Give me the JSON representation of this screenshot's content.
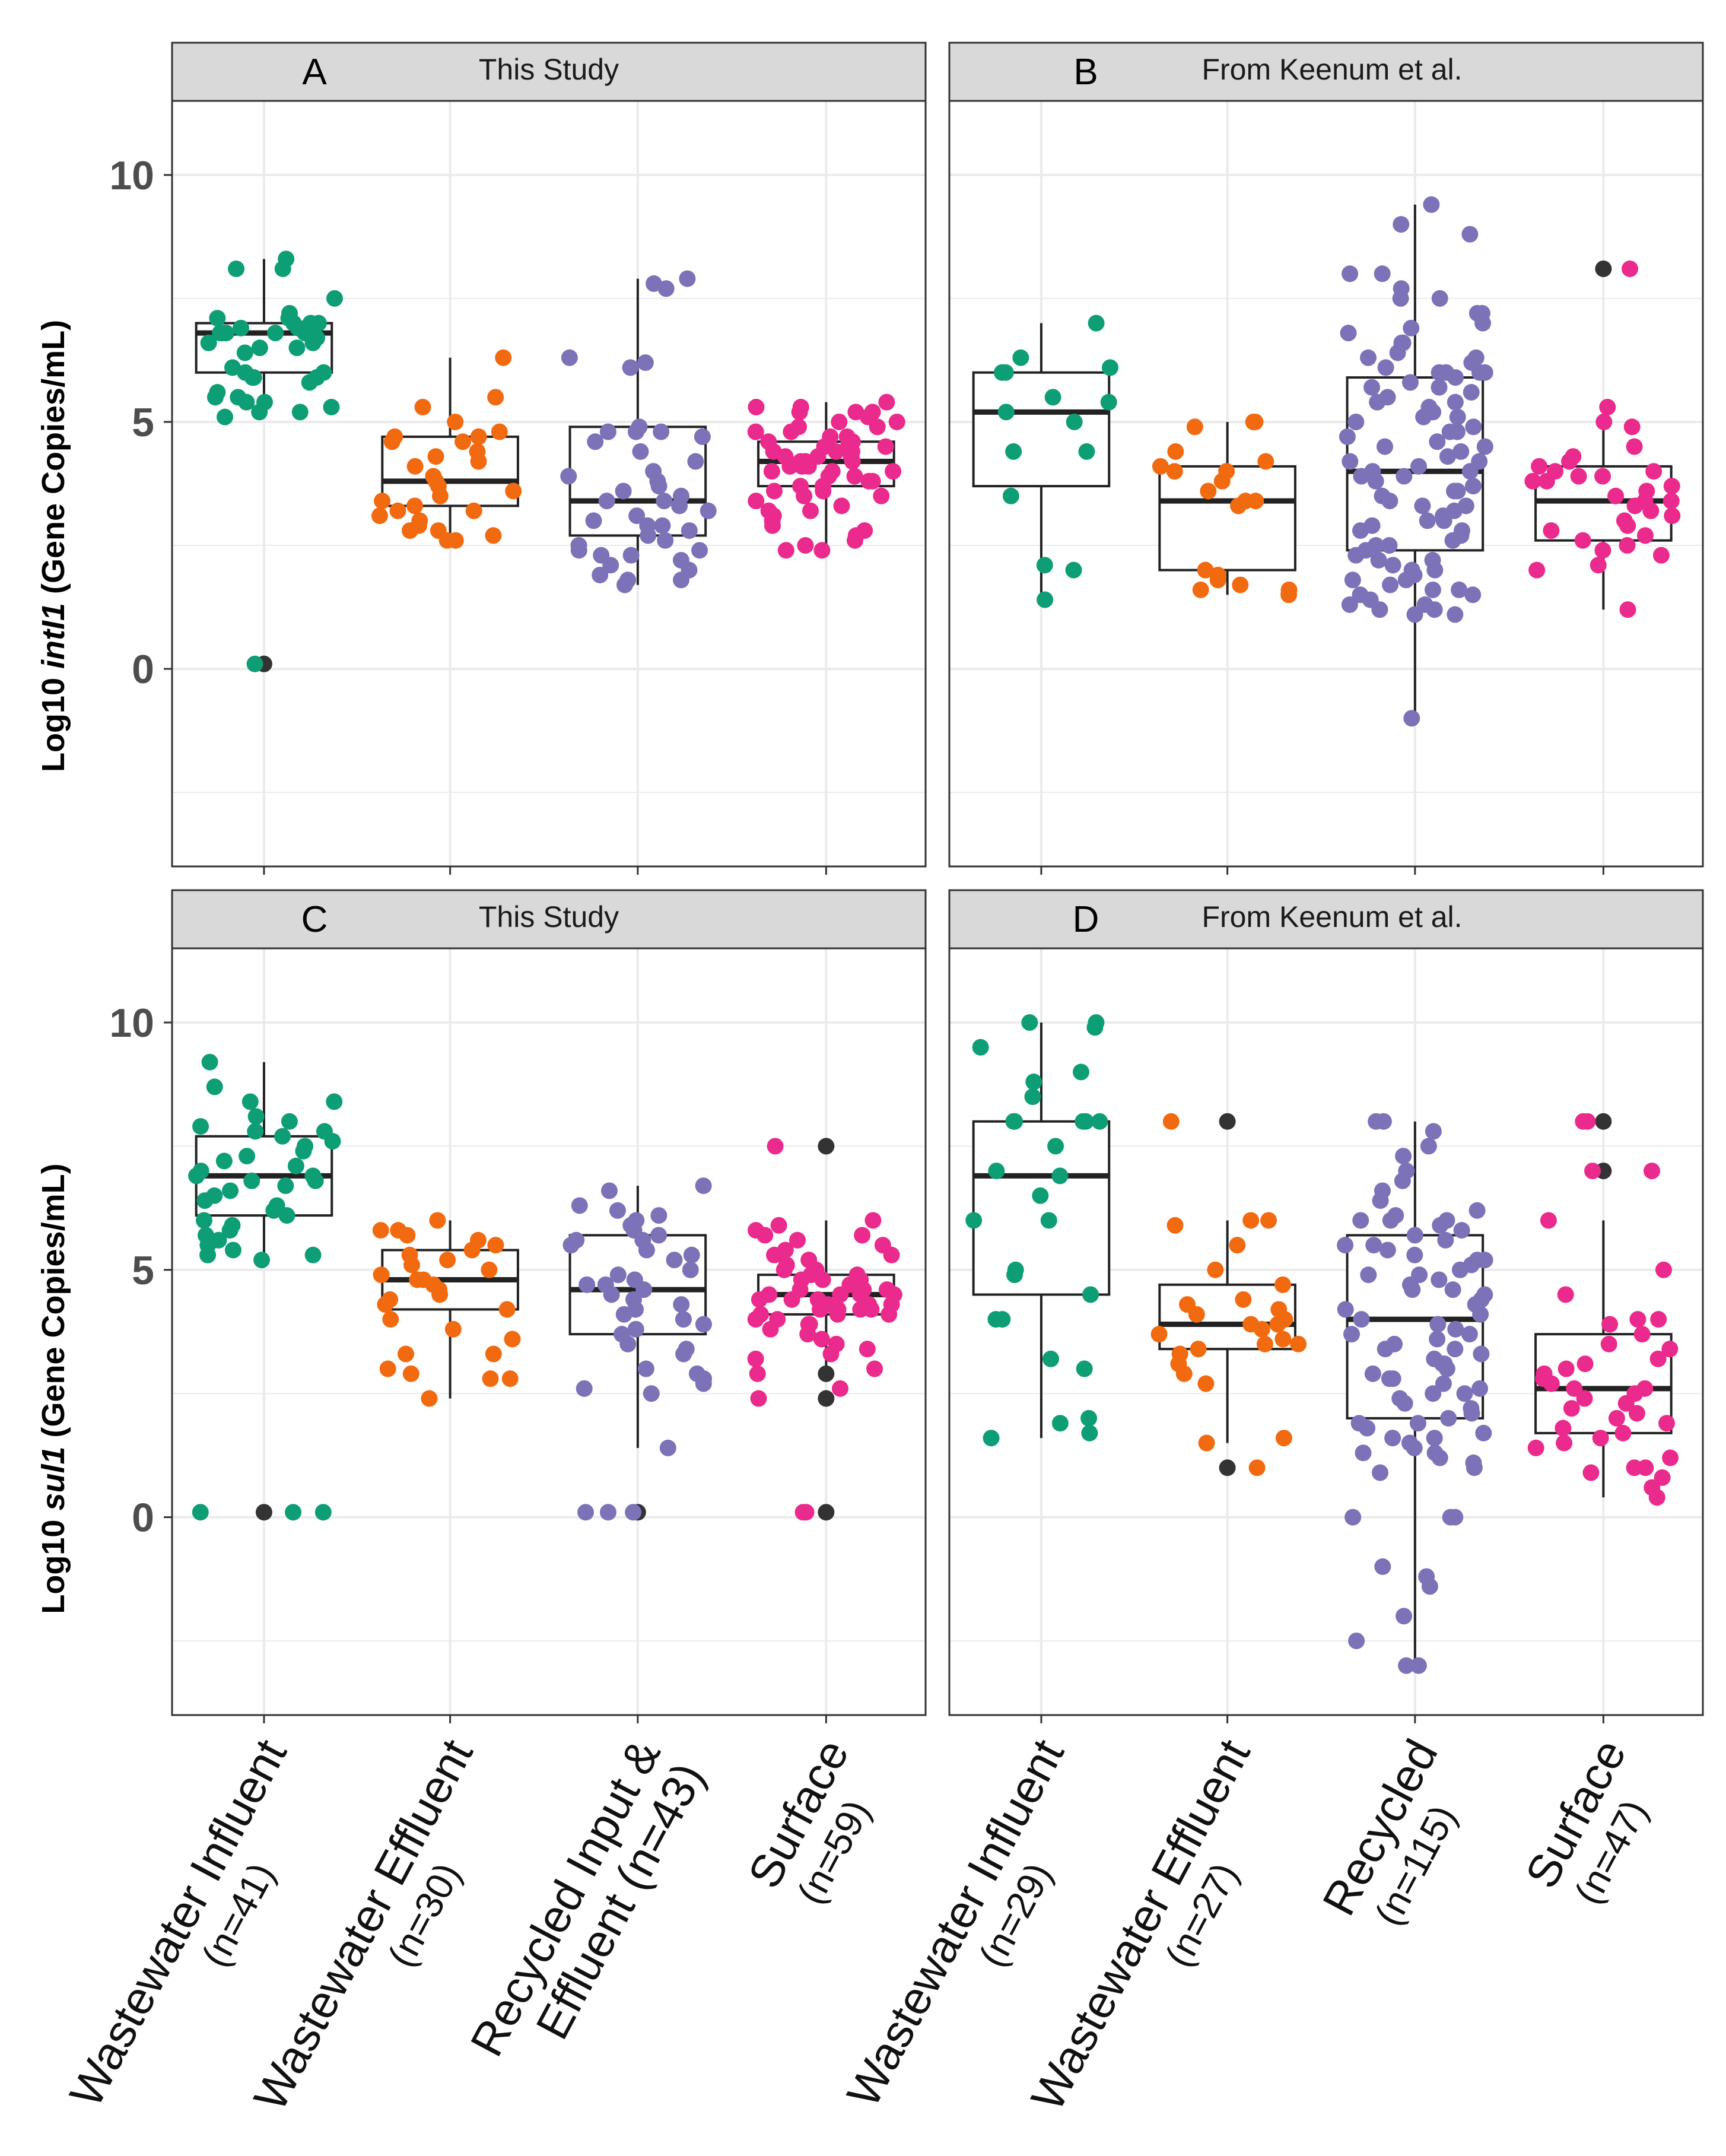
{
  "figure": {
    "y_label_top_pre": "Log10 ",
    "y_label_top_gene": "intI1",
    "y_label_top_post": " (Gene Copies/mL)",
    "y_label_bottom_pre": "Log10 ",
    "y_label_bottom_gene": "sul1",
    "y_label_bottom_post": " (Gene Copies/mL)",
    "colors": {
      "wastewater_influent": "#0e9e75",
      "wastewater_effluent": "#f26a10",
      "recycled": "#7c72b8",
      "surface": "#ea2a8c",
      "outlier": "#333333",
      "strip_fill": "#d9d9d9",
      "grid": "#ebebeb"
    }
  },
  "chart_data": [
    {
      "panel": "A",
      "title": "This Study",
      "type": "box+jitter",
      "ylabel": "Log10 intI1 (Gene Copies/mL)",
      "ylim": [
        -4,
        11.5
      ],
      "yticks": [
        0,
        5,
        10
      ],
      "categories": [
        {
          "label": [
            "Wastewater Influent"
          ],
          "n": "(n=41)",
          "color_key": "wastewater_influent",
          "box": {
            "whisker_low": 5.1,
            "q1": 6.0,
            "median": 6.8,
            "q3": 7.0,
            "whisker_high": 8.3
          },
          "outliers": [
            0.1
          ],
          "points": [
            8.3,
            8.1,
            8.1,
            7.5,
            7.2,
            7.1,
            7.1,
            7.0,
            7.0,
            7.0,
            6.9,
            6.9,
            6.9,
            6.8,
            6.8,
            6.8,
            6.8,
            6.8,
            6.7,
            6.6,
            6.6,
            6.5,
            6.5,
            6.4,
            6.1,
            6.0,
            6.0,
            5.9,
            5.9,
            5.9,
            5.8,
            5.6,
            5.5,
            5.5,
            5.4,
            5.4,
            5.3,
            5.2,
            5.2,
            5.1,
            0.1
          ]
        },
        {
          "label": [
            "Wastewater Effluent"
          ],
          "n": "(n=30)",
          "color_key": "wastewater_effluent",
          "box": {
            "whisker_low": 2.6,
            "q1": 3.3,
            "median": 3.8,
            "q3": 4.7,
            "whisker_high": 6.3
          },
          "outliers": [],
          "points": [
            6.3,
            5.5,
            5.3,
            5.0,
            4.8,
            4.7,
            4.7,
            4.6,
            4.6,
            4.4,
            4.3,
            4.2,
            4.1,
            3.9,
            3.8,
            3.7,
            3.6,
            3.5,
            3.4,
            3.3,
            3.2,
            3.2,
            3.1,
            3.0,
            2.9,
            2.8,
            2.8,
            2.7,
            2.6,
            2.6
          ]
        },
        {
          "label": [
            "Recycled Input &",
            "Effluent"
          ],
          "n": "(n=43)",
          "color_key": "recycled",
          "box": {
            "whisker_low": 1.7,
            "q1": 2.7,
            "median": 3.4,
            "q3": 4.9,
            "whisker_high": 7.9
          },
          "outliers": [],
          "points": [
            7.9,
            7.8,
            7.7,
            6.3,
            6.2,
            6.1,
            4.9,
            4.8,
            4.8,
            4.8,
            4.7,
            4.6,
            4.4,
            4.2,
            4.0,
            3.9,
            3.8,
            3.7,
            3.6,
            3.5,
            3.4,
            3.4,
            3.3,
            3.2,
            3.1,
            3.0,
            2.9,
            2.9,
            2.8,
            2.7,
            2.6,
            2.5,
            2.4,
            2.4,
            2.3,
            2.3,
            2.2,
            2.1,
            2.0,
            1.9,
            1.8,
            1.7,
            1.8
          ]
        },
        {
          "label": [
            "Surface"
          ],
          "n": "(n=59)",
          "color_key": "surface",
          "box": {
            "whisker_low": 2.4,
            "q1": 3.7,
            "median": 4.2,
            "q3": 4.6,
            "whisker_high": 5.4
          },
          "outliers": [],
          "points": [
            5.3,
            5.3,
            5.2,
            5.2,
            5.1,
            5.0,
            5.0,
            4.9,
            4.9,
            4.8,
            4.8,
            4.7,
            4.7,
            4.6,
            4.6,
            4.5,
            4.5,
            4.5,
            4.4,
            4.4,
            4.4,
            4.3,
            4.3,
            4.3,
            4.2,
            4.2,
            4.2,
            4.1,
            4.1,
            4.1,
            4.0,
            4.0,
            4.0,
            3.9,
            3.9,
            3.8,
            3.8,
            3.7,
            3.7,
            3.6,
            3.6,
            3.5,
            3.5,
            3.4,
            3.3,
            3.2,
            3.2,
            3.1,
            3.0,
            2.9,
            2.8,
            2.7,
            2.6,
            2.5,
            2.4,
            2.4,
            5.4,
            5.2,
            4.6
          ]
        }
      ]
    },
    {
      "panel": "B",
      "title": "From Keenum et al.",
      "type": "box+jitter",
      "ylabel": "Log10 intI1 (Gene Copies/mL)",
      "ylim": [
        -4,
        11.5
      ],
      "yticks": [
        0,
        5,
        10
      ],
      "categories": [
        {
          "label": [
            "Wastewater Influent"
          ],
          "n": "(n=29)",
          "color_key": "wastewater_influent",
          "box": {
            "whisker_low": 1.5,
            "q1": 3.7,
            "median": 5.2,
            "q3": 6.0,
            "whisker_high": 7.0
          },
          "outliers": [],
          "points": [
            7.0,
            6.3,
            6.1,
            6.0,
            6.0,
            5.5,
            5.4,
            5.2,
            5.0,
            4.4,
            4.4,
            3.5,
            2.1,
            2.0,
            1.4
          ]
        },
        {
          "label": [
            "Wastewater Effluent"
          ],
          "n": "(n=27)",
          "color_key": "wastewater_effluent",
          "box": {
            "whisker_low": 1.5,
            "q1": 2.0,
            "median": 3.4,
            "q3": 4.1,
            "whisker_high": 5.0
          },
          "outliers": [],
          "points": [
            5.0,
            5.0,
            4.9,
            4.4,
            4.2,
            4.1,
            4.0,
            4.0,
            3.8,
            3.6,
            3.4,
            3.4,
            3.3,
            2.0,
            1.9,
            1.8,
            1.7,
            1.6,
            1.6,
            1.5
          ]
        },
        {
          "label": [
            "Recycled"
          ],
          "n": "(n=115)",
          "color_key": "recycled",
          "box": {
            "whisker_low": -1.0,
            "q1": 2.4,
            "median": 4.0,
            "q3": 5.9,
            "whisker_high": 9.4
          },
          "outliers": [],
          "points": [
            9.4,
            9.0,
            8.8,
            8.0,
            8.0,
            7.7,
            7.5,
            7.2,
            7.0,
            6.8,
            6.6,
            6.4,
            6.3,
            6.2,
            6.1,
            6.0,
            6.0,
            6.0,
            5.9,
            5.8,
            5.7,
            5.6,
            5.5,
            5.4,
            5.3,
            5.2,
            5.1,
            5.0,
            4.9,
            4.8,
            4.7,
            4.6,
            4.5,
            4.4,
            4.3,
            4.2,
            4.1,
            4.0,
            4.0,
            3.9,
            3.8,
            3.7,
            3.6,
            3.5,
            3.4,
            3.3,
            3.2,
            3.1,
            3.0,
            2.9,
            2.8,
            2.7,
            2.6,
            2.5,
            2.4,
            2.3,
            2.2,
            2.1,
            2.0,
            1.9,
            1.8,
            1.7,
            1.6,
            1.5,
            1.4,
            1.3,
            1.2,
            1.1,
            1.1,
            1.2,
            1.3,
            1.5,
            1.6,
            1.8,
            2.0,
            2.2,
            2.5,
            2.8,
            3.0,
            3.3,
            3.6,
            3.9,
            4.2,
            4.5,
            4.8,
            5.1,
            5.4,
            5.7,
            6.0,
            6.3,
            6.6,
            6.9,
            7.2,
            7.5,
            -1.0
          ]
        },
        {
          "label": [
            "Surface"
          ],
          "n": "(n=47)",
          "color_key": "surface",
          "box": {
            "whisker_low": 1.2,
            "q1": 2.6,
            "median": 3.4,
            "q3": 4.1,
            "whisker_high": 5.3
          },
          "outliers": [
            8.1
          ],
          "points": [
            8.1,
            5.3,
            5.0,
            4.9,
            4.5,
            4.3,
            4.2,
            4.1,
            4.0,
            4.0,
            3.9,
            3.9,
            3.8,
            3.8,
            3.7,
            3.6,
            3.5,
            3.4,
            3.4,
            3.3,
            3.2,
            3.1,
            3.0,
            2.9,
            2.8,
            2.7,
            2.6,
            2.5,
            2.4,
            2.3,
            2.1,
            2.0,
            1.2
          ]
        }
      ]
    },
    {
      "panel": "C",
      "title": "This Study",
      "type": "box+jitter",
      "ylabel": "Log10 sul1 (Gene Copies/mL)",
      "ylim": [
        -4,
        11.5
      ],
      "yticks": [
        0,
        5,
        10
      ],
      "categories": [
        {
          "label": [
            "Wastewater Influent"
          ],
          "n": "(n=41)",
          "color_key": "wastewater_influent",
          "box": {
            "whisker_low": 5.2,
            "q1": 6.1,
            "median": 6.9,
            "q3": 7.7,
            "whisker_high": 9.2
          },
          "outliers": [
            0.1
          ],
          "points": [
            9.2,
            8.7,
            8.4,
            8.4,
            8.1,
            7.9,
            7.8,
            7.8,
            7.7,
            7.6,
            7.5,
            7.4,
            7.3,
            7.2,
            7.1,
            7.0,
            6.9,
            6.9,
            6.8,
            6.8,
            6.7,
            6.6,
            6.5,
            6.4,
            6.3,
            6.2,
            6.1,
            6.0,
            5.9,
            5.8,
            5.7,
            5.6,
            5.5,
            5.4,
            5.3,
            5.3,
            5.2,
            0.1,
            0.1,
            0.1,
            8.0
          ]
        },
        {
          "label": [
            "Wastewater Effluent"
          ],
          "n": "(n=30)",
          "color_key": "wastewater_effluent",
          "box": {
            "whisker_low": 2.4,
            "q1": 4.2,
            "median": 4.8,
            "q3": 5.4,
            "whisker_high": 6.0
          },
          "outliers": [],
          "points": [
            6.0,
            5.8,
            5.8,
            5.7,
            5.6,
            5.5,
            5.4,
            5.3,
            5.2,
            5.1,
            5.0,
            4.9,
            4.8,
            4.8,
            4.7,
            4.6,
            4.5,
            4.4,
            4.3,
            4.2,
            4.0,
            3.8,
            3.6,
            3.3,
            3.3,
            3.0,
            2.9,
            2.8,
            2.8,
            2.4
          ]
        },
        {
          "label": [
            "Recycled Input &",
            "Effluent"
          ],
          "n": "(n=43)",
          "color_key": "recycled",
          "box": {
            "whisker_low": 1.4,
            "q1": 3.7,
            "median": 4.6,
            "q3": 5.7,
            "whisker_high": 6.7
          },
          "outliers": [
            0.1
          ],
          "points": [
            6.7,
            6.6,
            6.3,
            6.2,
            6.1,
            6.0,
            5.9,
            5.8,
            5.7,
            5.6,
            5.5,
            5.4,
            5.3,
            5.2,
            5.0,
            4.9,
            4.8,
            4.7,
            4.6,
            4.5,
            4.4,
            4.3,
            4.2,
            4.1,
            4.0,
            3.9,
            3.8,
            3.7,
            3.5,
            3.3,
            3.0,
            2.9,
            2.8,
            2.7,
            2.6,
            2.5,
            1.4,
            0.1,
            0.1,
            0.1,
            3.4,
            4.7,
            5.6
          ]
        },
        {
          "label": [
            "Surface"
          ],
          "n": "(n=59)",
          "color_key": "surface",
          "box": {
            "whisker_low": 3.0,
            "q1": 4.1,
            "median": 4.5,
            "q3": 4.9,
            "whisker_high": 6.0
          },
          "outliers": [
            7.5,
            2.9,
            2.4,
            0.1
          ],
          "points": [
            7.5,
            6.0,
            5.9,
            5.8,
            5.7,
            5.6,
            5.5,
            5.4,
            5.3,
            5.2,
            5.1,
            5.0,
            5.0,
            4.9,
            4.9,
            4.8,
            4.8,
            4.7,
            4.7,
            4.6,
            4.6,
            4.6,
            4.5,
            4.5,
            4.5,
            4.4,
            4.4,
            4.4,
            4.3,
            4.3,
            4.3,
            4.2,
            4.2,
            4.2,
            4.1,
            4.1,
            4.1,
            4.0,
            4.0,
            3.9,
            3.9,
            3.8,
            3.7,
            3.6,
            3.5,
            3.4,
            3.3,
            3.2,
            3.0,
            2.9,
            2.6,
            2.4,
            0.1,
            0.1,
            5.7,
            5.3,
            4.8,
            4.5,
            4.2
          ]
        }
      ]
    },
    {
      "panel": "D",
      "title": "From Keenum et al.",
      "type": "box+jitter",
      "ylabel": "Log10 sul1 (Gene Copies/mL)",
      "ylim": [
        -4,
        11.5
      ],
      "yticks": [
        0,
        5,
        10
      ],
      "categories": [
        {
          "label": [
            "Wastewater Influent"
          ],
          "n": "(n=29)",
          "color_key": "wastewater_influent",
          "box": {
            "whisker_low": 1.6,
            "q1": 4.5,
            "median": 6.9,
            "q3": 8.0,
            "whisker_high": 10.0
          },
          "outliers": [],
          "points": [
            10.0,
            10.0,
            9.9,
            9.5,
            9.0,
            8.8,
            8.5,
            8.0,
            8.0,
            8.0,
            8.0,
            7.5,
            7.0,
            6.9,
            6.5,
            6.0,
            6.0,
            5.0,
            4.9,
            4.5,
            4.0,
            4.0,
            3.2,
            3.0,
            2.0,
            1.9,
            1.7,
            1.6,
            8.0
          ]
        },
        {
          "label": [
            "Wastewater Effluent"
          ],
          "n": "(n=27)",
          "color_key": "wastewater_effluent",
          "box": {
            "whisker_low": 1.5,
            "q1": 3.4,
            "median": 3.9,
            "q3": 4.7,
            "whisker_high": 6.0
          },
          "outliers": [
            8.0,
            1.0
          ],
          "points": [
            8.0,
            6.0,
            6.0,
            5.9,
            5.5,
            5.0,
            4.7,
            4.4,
            4.3,
            4.2,
            4.1,
            4.0,
            3.9,
            3.9,
            3.8,
            3.7,
            3.6,
            3.5,
            3.5,
            3.4,
            3.3,
            3.1,
            2.9,
            2.7,
            1.6,
            1.5,
            1.0
          ]
        },
        {
          "label": [
            "Recycled"
          ],
          "n": "(n=115)",
          "color_key": "recycled",
          "box": {
            "whisker_low": -3.0,
            "q1": 2.0,
            "median": 4.0,
            "q3": 5.7,
            "whisker_high": 8.0
          },
          "outliers": [],
          "points": [
            8.0,
            8.0,
            7.8,
            7.5,
            7.3,
            7.0,
            6.8,
            6.6,
            6.4,
            6.2,
            6.0,
            6.0,
            6.0,
            5.9,
            5.8,
            5.7,
            5.6,
            5.5,
            5.4,
            5.3,
            5.2,
            5.1,
            5.0,
            4.9,
            4.8,
            4.7,
            4.6,
            4.5,
            4.4,
            4.3,
            4.2,
            4.1,
            4.0,
            3.9,
            3.8,
            3.7,
            3.6,
            3.5,
            3.4,
            3.3,
            3.2,
            3.1,
            3.0,
            2.9,
            2.8,
            2.7,
            2.6,
            2.5,
            2.4,
            2.3,
            2.2,
            2.1,
            2.0,
            1.9,
            1.8,
            1.7,
            1.6,
            1.5,
            1.4,
            1.3,
            1.2,
            1.1,
            1.0,
            0.9,
            0.0,
            0.0,
            0.0,
            -1.0,
            -1.2,
            -1.4,
            -2.0,
            -2.5,
            -3.0,
            -3.0,
            6.1,
            5.5,
            4.9,
            4.3,
            3.7,
            3.1,
            2.5,
            1.9,
            1.3,
            5.2,
            4.6,
            3.4,
            2.8,
            1.6
          ]
        },
        {
          "label": [
            "Surface"
          ],
          "n": "(n=47)",
          "color_key": "surface",
          "box": {
            "whisker_low": 0.4,
            "q1": 1.7,
            "median": 2.6,
            "q3": 3.7,
            "whisker_high": 6.0
          },
          "outliers": [
            8.0,
            7.0
          ],
          "points": [
            8.0,
            8.0,
            7.0,
            7.0,
            6.0,
            5.0,
            4.5,
            4.0,
            4.0,
            3.9,
            3.7,
            3.5,
            3.4,
            3.2,
            3.1,
            3.0,
            2.9,
            2.8,
            2.7,
            2.6,
            2.6,
            2.5,
            2.4,
            2.3,
            2.2,
            2.1,
            2.0,
            1.9,
            1.8,
            1.7,
            1.6,
            1.5,
            1.4,
            1.2,
            1.0,
            1.0,
            0.9,
            0.8,
            0.6,
            0.4
          ]
        }
      ]
    }
  ]
}
